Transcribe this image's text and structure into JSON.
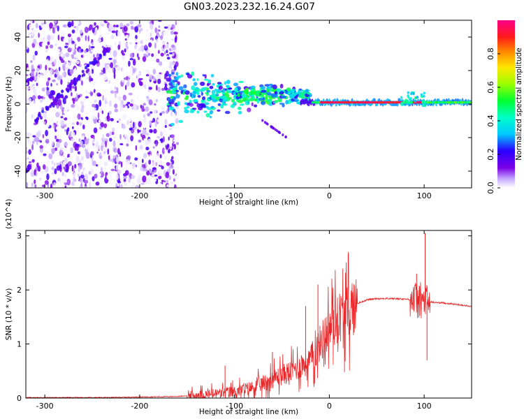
{
  "title": "GN03.2023.232.16.24.G07",
  "colors": {
    "snr_line": "#e8282a",
    "axes": "#000000",
    "background": "#ffffff"
  },
  "chart_data": [
    {
      "type": "heatmap",
      "xlabel": "Height of straight line (km)",
      "ylabel": "Frequency (Hz)",
      "xlim": [
        -320,
        150
      ],
      "ylim": [
        -50,
        50
      ],
      "xticks": [
        -300,
        -200,
        -100,
        0,
        100
      ],
      "yticks": [
        -40,
        -20,
        0,
        20,
        40
      ],
      "colorbar": {
        "label": "Normalized spectral amplitude",
        "range": [
          0,
          1
        ],
        "ticks": [
          "0.0",
          "0.2",
          "0.4",
          "0.6",
          "0.8"
        ],
        "colormap": "rainbow (violet to magenta)"
      },
      "features": [
        {
          "name": "noise region",
          "x_range": [
            -320,
            -160
          ],
          "y_range": [
            -50,
            50
          ],
          "amplitude": "low (0-0.2)"
        },
        {
          "name": "diagonal streak",
          "from": [
            -310,
            -10
          ],
          "to": [
            -230,
            35
          ],
          "amplitude": "low-mid"
        },
        {
          "name": "dispersed ridge",
          "x_range": [
            -160,
            -20
          ],
          "center_freq": 5,
          "spread_hz": 12,
          "amplitude": "mid (0.3-0.5)"
        },
        {
          "name": "narrow line",
          "x_range": [
            -20,
            150
          ],
          "center_freq": 1,
          "amplitude": "high (0.8-1.0)"
        }
      ]
    },
    {
      "type": "line",
      "xlabel": "Height of straight line (km)",
      "ylabel": "SNR (10 * v/v)",
      "y_multiplier": "(x10^4)",
      "xlim": [
        -320,
        150
      ],
      "ylim": [
        0,
        3.1
      ],
      "xticks": [
        -300,
        -200,
        -100,
        0,
        100
      ],
      "yticks": [
        0,
        1,
        2,
        3
      ],
      "x": [
        -320,
        -280,
        -240,
        -200,
        -160,
        -150,
        -140,
        -120,
        -100,
        -80,
        -60,
        -40,
        -20,
        -10,
        0,
        10,
        20,
        30,
        40,
        50,
        60,
        70,
        80,
        90,
        95,
        100,
        105,
        110,
        120,
        130,
        140,
        150
      ],
      "y": [
        0.01,
        0.01,
        0.01,
        0.02,
        0.03,
        0.04,
        0.05,
        0.08,
        0.12,
        0.2,
        0.35,
        0.5,
        0.7,
        1.0,
        1.3,
        1.5,
        1.6,
        1.75,
        1.82,
        1.84,
        1.84,
        1.84,
        1.83,
        1.82,
        1.8,
        1.78,
        1.78,
        1.77,
        1.76,
        1.74,
        1.72,
        1.69
      ],
      "spikes": [
        {
          "x": -110,
          "y": 0.6
        },
        {
          "x": -60,
          "y": 0.85
        },
        {
          "x": -25,
          "y": 1.7
        },
        {
          "x": -12,
          "y": 2.1
        },
        {
          "x": 92,
          "y": 2.3
        },
        {
          "x": 101,
          "y": 3.05
        },
        {
          "x": 103,
          "y": 0.7
        }
      ]
    }
  ]
}
